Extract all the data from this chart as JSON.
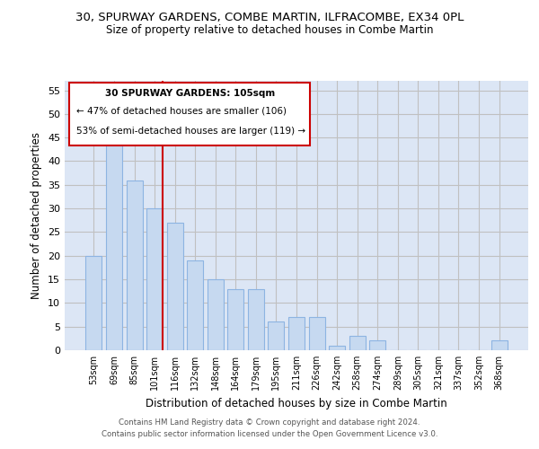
{
  "title": "30, SPURWAY GARDENS, COMBE MARTIN, ILFRACOMBE, EX34 0PL",
  "subtitle": "Size of property relative to detached houses in Combe Martin",
  "xlabel": "Distribution of detached houses by size in Combe Martin",
  "ylabel": "Number of detached properties",
  "categories": [
    "53sqm",
    "69sqm",
    "85sqm",
    "101sqm",
    "116sqm",
    "132sqm",
    "148sqm",
    "164sqm",
    "179sqm",
    "195sqm",
    "211sqm",
    "226sqm",
    "242sqm",
    "258sqm",
    "274sqm",
    "289sqm",
    "305sqm",
    "321sqm",
    "337sqm",
    "352sqm",
    "368sqm"
  ],
  "values": [
    20,
    45,
    36,
    30,
    27,
    19,
    15,
    13,
    13,
    6,
    7,
    7,
    1,
    3,
    2,
    0,
    0,
    0,
    0,
    0,
    2
  ],
  "bar_color": "#c6d9f0",
  "bar_edge_color": "#8db4e2",
  "bar_linewidth": 0.8,
  "grid_color": "#c0c0c0",
  "background_color": "#dce6f5",
  "marker_index": 3,
  "marker_color": "#cc0000",
  "ylim": [
    0,
    57
  ],
  "yticks": [
    0,
    5,
    10,
    15,
    20,
    25,
    30,
    35,
    40,
    45,
    50,
    55
  ],
  "annotation_title": "30 SPURWAY GARDENS: 105sqm",
  "annotation_line1": "← 47% of detached houses are smaller (106)",
  "annotation_line2": "53% of semi-detached houses are larger (119) →",
  "annotation_box_color": "#cc0000",
  "footer_line1": "Contains HM Land Registry data © Crown copyright and database right 2024.",
  "footer_line2": "Contains public sector information licensed under the Open Government Licence v3.0."
}
